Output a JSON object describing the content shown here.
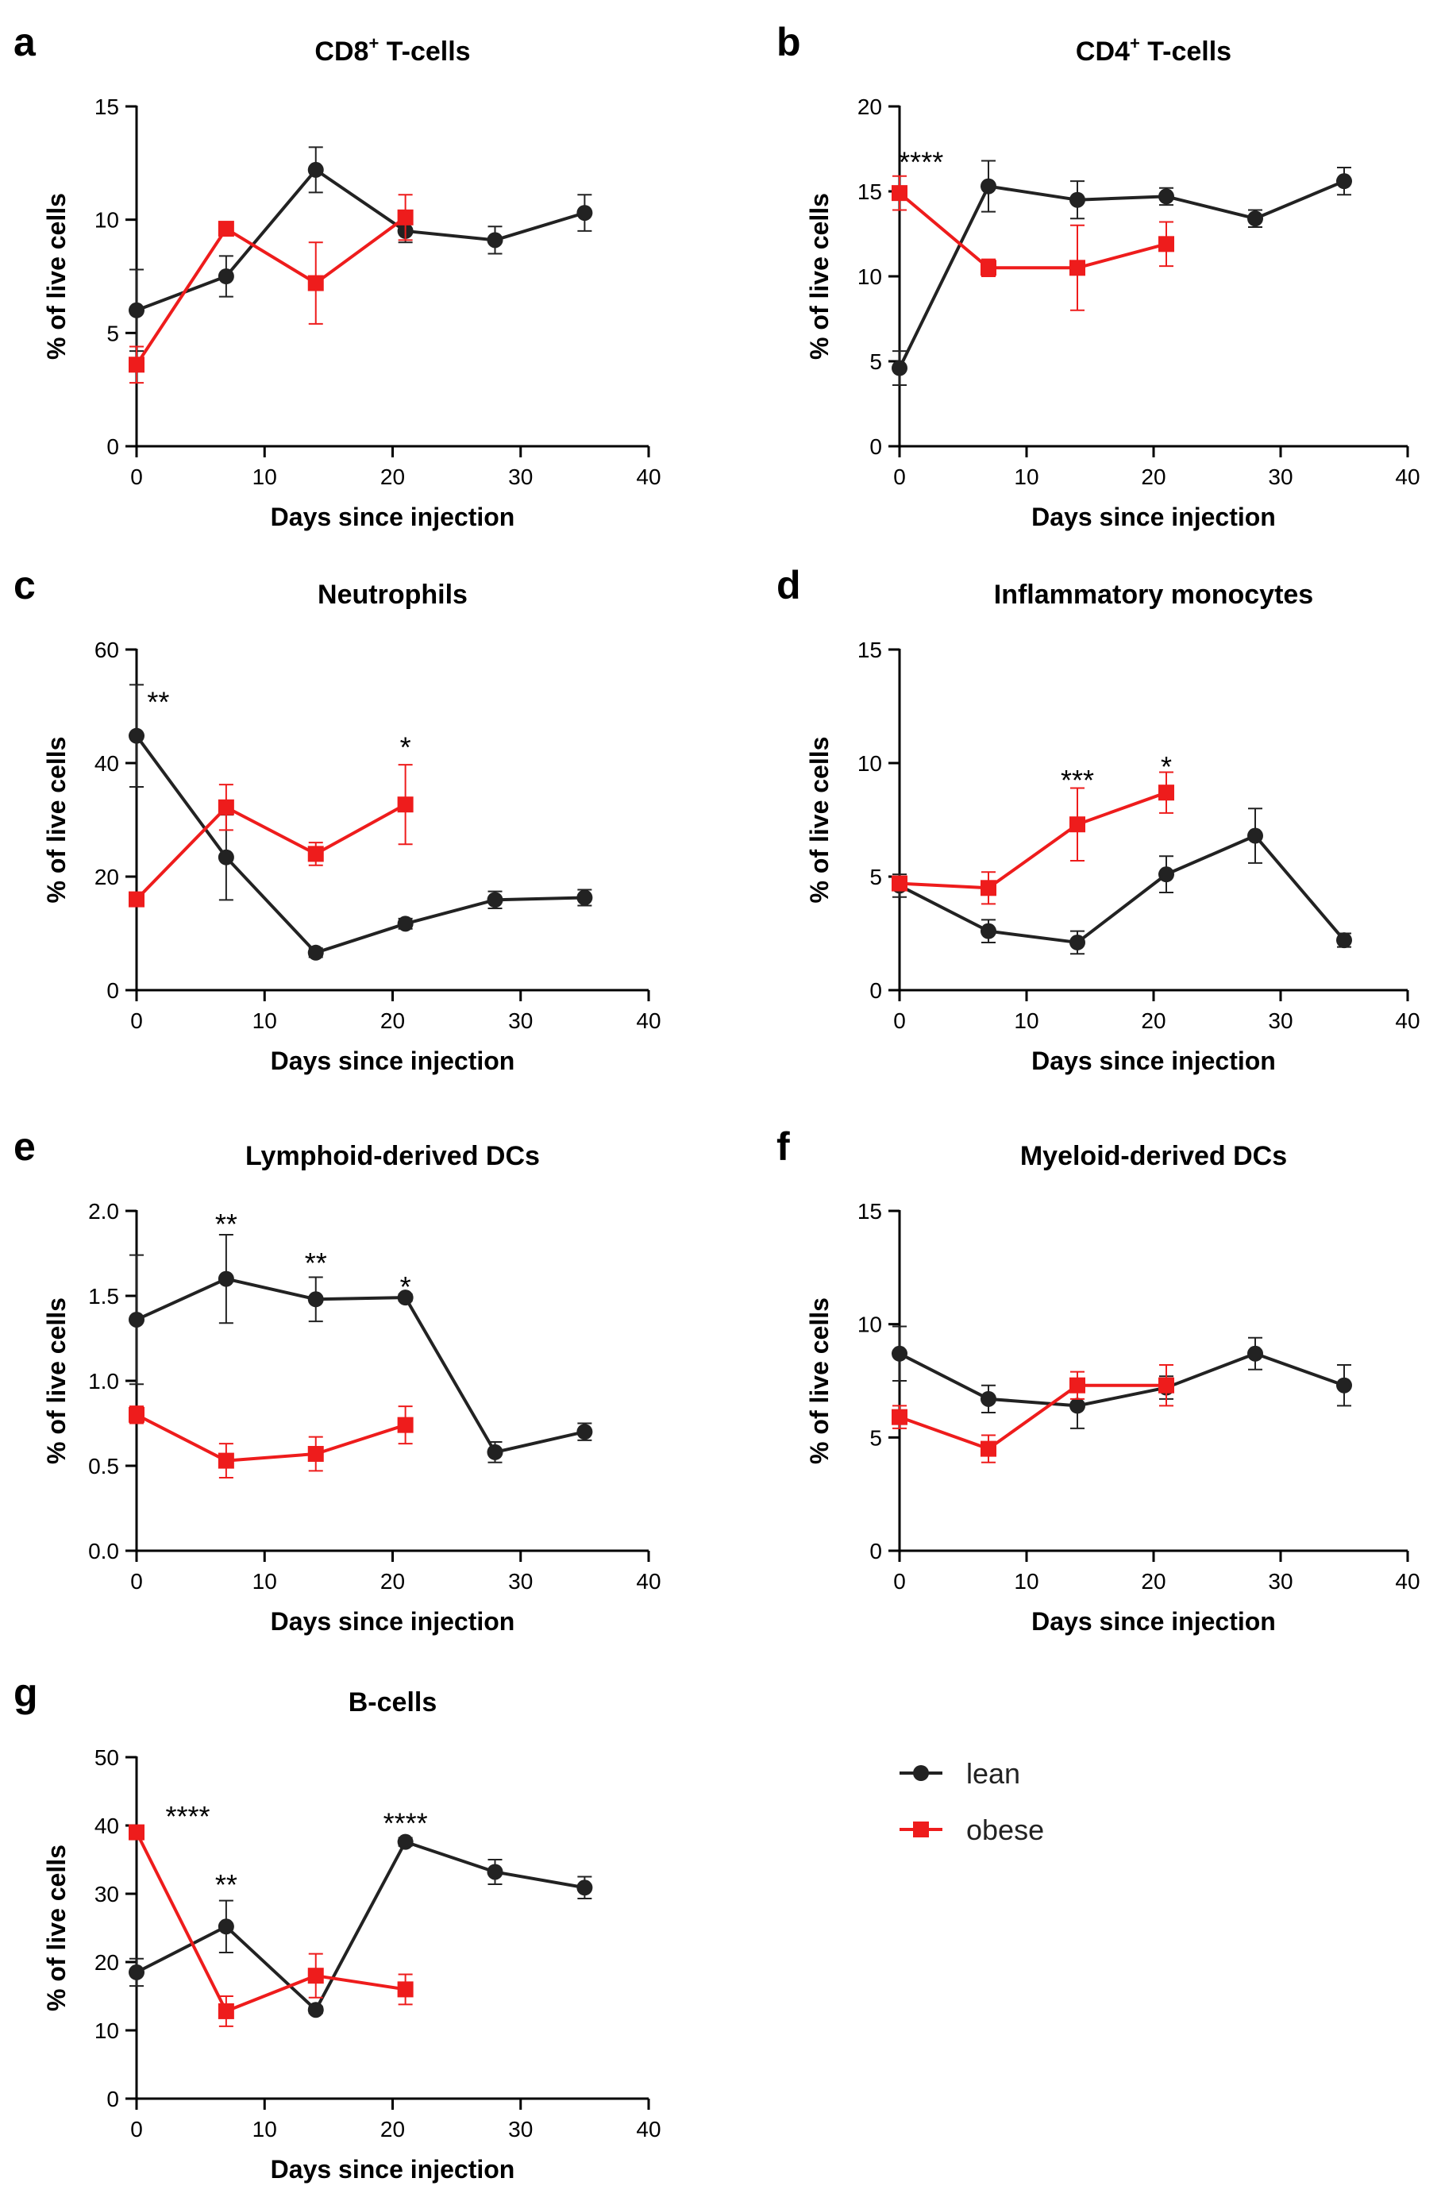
{
  "legend": {
    "lean_label": "lean",
    "obese_label": "obese",
    "lean_color": "#222222",
    "obese_color": "#ee1c1c"
  },
  "chart_data": [
    {
      "type": "line",
      "panel": "a",
      "title": "CD8",
      "title_superscript": "+",
      "title_suffix": " T-cells",
      "xlabel": "Days since injection",
      "ylabel": "% of live cells",
      "xlim": [
        0,
        40
      ],
      "ylim": [
        0,
        15
      ],
      "xticks": [
        "0",
        "10",
        "20",
        "30",
        "40"
      ],
      "yticks": [
        "0",
        "5",
        "10",
        "15"
      ],
      "series": [
        {
          "name": "lean",
          "x": [
            0,
            7,
            14,
            21,
            28,
            35
          ],
          "values": [
            6.0,
            7.5,
            12.2,
            9.5,
            9.1,
            10.3
          ],
          "errors": [
            1.8,
            0.9,
            1.0,
            0.5,
            0.6,
            0.8
          ]
        },
        {
          "name": "obese",
          "x": [
            0,
            7,
            14,
            21
          ],
          "values": [
            3.6,
            9.6,
            7.2,
            10.1
          ],
          "errors": [
            0.8,
            0.3,
            1.8,
            1.0
          ]
        }
      ],
      "annotations": []
    },
    {
      "type": "line",
      "panel": "b",
      "title": "CD4",
      "title_superscript": "+",
      "title_suffix": " T-cells",
      "xlabel": "Days since injection",
      "ylabel": "% of live cells",
      "xlim": [
        0,
        40
      ],
      "ylim": [
        0,
        20
      ],
      "xticks": [
        "0",
        "10",
        "20",
        "30",
        "40"
      ],
      "yticks": [
        "0",
        "5",
        "10",
        "15",
        "20"
      ],
      "series": [
        {
          "name": "lean",
          "x": [
            0,
            7,
            14,
            21,
            28,
            35
          ],
          "values": [
            4.6,
            15.3,
            14.5,
            14.7,
            13.4,
            15.6
          ],
          "errors": [
            1.0,
            1.5,
            1.1,
            0.5,
            0.5,
            0.8
          ]
        },
        {
          "name": "obese",
          "x": [
            0,
            7,
            14,
            21
          ],
          "values": [
            14.9,
            10.5,
            10.5,
            11.9
          ],
          "errors": [
            1.0,
            0.5,
            2.5,
            1.3
          ]
        }
      ],
      "annotations": [
        {
          "x": 1.7,
          "y": 16.8,
          "text": "****"
        }
      ]
    },
    {
      "type": "line",
      "panel": "c",
      "title": "Neutrophils",
      "title_superscript": "",
      "title_suffix": "",
      "xlabel": "Days since injection",
      "ylabel": "% of live cells",
      "xlim": [
        0,
        40
      ],
      "ylim": [
        0,
        60
      ],
      "xticks": [
        "0",
        "10",
        "20",
        "30",
        "40"
      ],
      "yticks": [
        "0",
        "20",
        "40",
        "60"
      ],
      "series": [
        {
          "name": "lean",
          "x": [
            0,
            7,
            14,
            21,
            28,
            35
          ],
          "values": [
            44.8,
            23.4,
            6.6,
            11.7,
            15.9,
            16.3
          ],
          "errors": [
            9.0,
            7.5,
            0.8,
            0.9,
            1.5,
            1.4
          ]
        },
        {
          "name": "obese",
          "x": [
            0,
            7,
            14,
            21
          ],
          "values": [
            16.0,
            32.2,
            24.0,
            32.7
          ],
          "errors": [
            1.0,
            4.0,
            2.0,
            7.0
          ]
        }
      ],
      "annotations": [
        {
          "x": 1.7,
          "y": 51,
          "text": "**"
        },
        {
          "x": 21,
          "y": 43,
          "text": "*"
        }
      ]
    },
    {
      "type": "line",
      "panel": "d",
      "title": "Inflammatory monocytes",
      "title_superscript": "",
      "title_suffix": "",
      "xlabel": "Days since injection",
      "ylabel": "% of live cells",
      "xlim": [
        0,
        40
      ],
      "ylim": [
        0,
        15
      ],
      "xticks": [
        "0",
        "10",
        "20",
        "30",
        "40"
      ],
      "yticks": [
        "0",
        "5",
        "10",
        "15"
      ],
      "series": [
        {
          "name": "lean",
          "x": [
            0,
            7,
            14,
            21,
            28,
            35
          ],
          "values": [
            4.6,
            2.6,
            2.1,
            5.1,
            6.8,
            2.2
          ],
          "errors": [
            0.5,
            0.5,
            0.5,
            0.8,
            1.2,
            0.3
          ]
        },
        {
          "name": "obese",
          "x": [
            0,
            7,
            14,
            21
          ],
          "values": [
            4.7,
            4.5,
            7.3,
            8.7
          ],
          "errors": [
            0.3,
            0.7,
            1.6,
            0.9
          ]
        }
      ],
      "annotations": [
        {
          "x": 14,
          "y": 9.3,
          "text": "***"
        },
        {
          "x": 21,
          "y": 9.9,
          "text": "*"
        }
      ]
    },
    {
      "type": "line",
      "panel": "e",
      "title": "Lymphoid-derived DCs",
      "title_superscript": "",
      "title_suffix": "",
      "xlabel": "Days since injection",
      "ylabel": "% of live cells",
      "xlim": [
        0,
        40
      ],
      "ylim": [
        0,
        2.0
      ],
      "xticks": [
        "0",
        "10",
        "20",
        "30",
        "40"
      ],
      "yticks": [
        "0.0",
        "0.5",
        "1.0",
        "1.5",
        "2.0"
      ],
      "series": [
        {
          "name": "lean",
          "x": [
            0,
            7,
            14,
            21,
            28,
            35
          ],
          "values": [
            1.36,
            1.6,
            1.48,
            1.49,
            0.58,
            0.7
          ],
          "errors": [
            0.38,
            0.26,
            0.13,
            0.02,
            0.06,
            0.05
          ]
        },
        {
          "name": "obese",
          "x": [
            0,
            7,
            14,
            21
          ],
          "values": [
            0.8,
            0.53,
            0.57,
            0.74
          ],
          "errors": [
            0.05,
            0.1,
            0.1,
            0.11
          ]
        }
      ],
      "annotations": [
        {
          "x": 7,
          "y": 1.93,
          "text": "**"
        },
        {
          "x": 14,
          "y": 1.7,
          "text": "**"
        },
        {
          "x": 21,
          "y": 1.56,
          "text": "*"
        }
      ]
    },
    {
      "type": "line",
      "panel": "f",
      "title": "Myeloid-derived DCs",
      "title_superscript": "",
      "title_suffix": "",
      "xlabel": "Days since injection",
      "ylabel": "% of live cells",
      "xlim": [
        0,
        40
      ],
      "ylim": [
        0,
        15
      ],
      "xticks": [
        "0",
        "10",
        "20",
        "30",
        "40"
      ],
      "yticks": [
        "0",
        "5",
        "10",
        "15"
      ],
      "series": [
        {
          "name": "lean",
          "x": [
            0,
            7,
            14,
            21,
            28,
            35
          ],
          "values": [
            8.7,
            6.7,
            6.4,
            7.2,
            8.7,
            7.3
          ],
          "errors": [
            1.2,
            0.6,
            1.0,
            0.5,
            0.7,
            0.9
          ]
        },
        {
          "name": "obese",
          "x": [
            0,
            7,
            14,
            21
          ],
          "values": [
            5.9,
            4.5,
            7.3,
            7.3
          ],
          "errors": [
            0.5,
            0.6,
            0.6,
            0.9
          ]
        }
      ],
      "annotations": []
    },
    {
      "type": "line",
      "panel": "g",
      "title": "B-cells",
      "title_superscript": "",
      "title_suffix": "",
      "xlabel": "Days since injection",
      "ylabel": "% of live cells",
      "xlim": [
        0,
        40
      ],
      "ylim": [
        0,
        50
      ],
      "xticks": [
        "0",
        "10",
        "20",
        "30",
        "40"
      ],
      "yticks": [
        "0",
        "10",
        "20",
        "30",
        "40",
        "50"
      ],
      "series": [
        {
          "name": "lean",
          "x": [
            0,
            7,
            14,
            21,
            28,
            35
          ],
          "values": [
            18.5,
            25.2,
            13.0,
            37.6,
            33.2,
            30.9
          ],
          "errors": [
            2.0,
            3.8,
            0.5,
            0.6,
            1.8,
            1.6
          ]
        },
        {
          "name": "obese",
          "x": [
            0,
            7,
            14,
            21
          ],
          "values": [
            39.0,
            12.8,
            18.0,
            16.0
          ],
          "errors": [
            1.0,
            2.2,
            3.2,
            2.2
          ]
        }
      ],
      "annotations": [
        {
          "x": 4,
          "y": 41.5,
          "text": "****"
        },
        {
          "x": 7,
          "y": 31.5,
          "text": "**"
        },
        {
          "x": 21,
          "y": 40.5,
          "text": "****"
        }
      ]
    }
  ]
}
